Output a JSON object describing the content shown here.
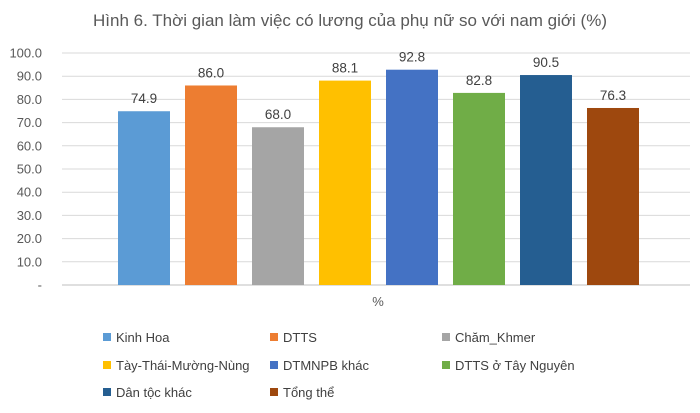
{
  "chart_data": {
    "type": "bar",
    "title": "Hình 6. Thời gian làm việc có lương của phụ nữ so với nam giới (%)",
    "xlabel": "%",
    "ylabel": "",
    "ylim": [
      0,
      100
    ],
    "yticks": [
      "-",
      "10.0",
      "20.0",
      "30.0",
      "40.0",
      "50.0",
      "60.0",
      "70.0",
      "80.0",
      "90.0",
      "100.0"
    ],
    "grid": true,
    "legend_position": "bottom",
    "series": [
      {
        "name": "Kinh Hoa",
        "value": 74.9,
        "label": "74.9",
        "color": "#5b9bd5"
      },
      {
        "name": "DTTS",
        "value": 86.0,
        "label": "86.0",
        "color": "#ed7d31"
      },
      {
        "name": "Chăm_Khmer",
        "value": 68.0,
        "label": "68.0",
        "color": "#a5a5a5"
      },
      {
        "name": "Tày-Thái-Mường-Nùng",
        "value": 88.1,
        "label": "88.1",
        "color": "#ffc000"
      },
      {
        "name": "DTMNPB khác",
        "value": 92.8,
        "label": "92.8",
        "color": "#4472c4"
      },
      {
        "name": "DTTS ở Tây Nguyên",
        "value": 82.8,
        "label": "82.8",
        "color": "#70ad47"
      },
      {
        "name": "Dân tộc khác",
        "value": 90.5,
        "label": "90.5",
        "color": "#255e91"
      },
      {
        "name": "Tổng thể",
        "value": 76.3,
        "label": "76.3",
        "color": "#9e480e"
      }
    ]
  }
}
